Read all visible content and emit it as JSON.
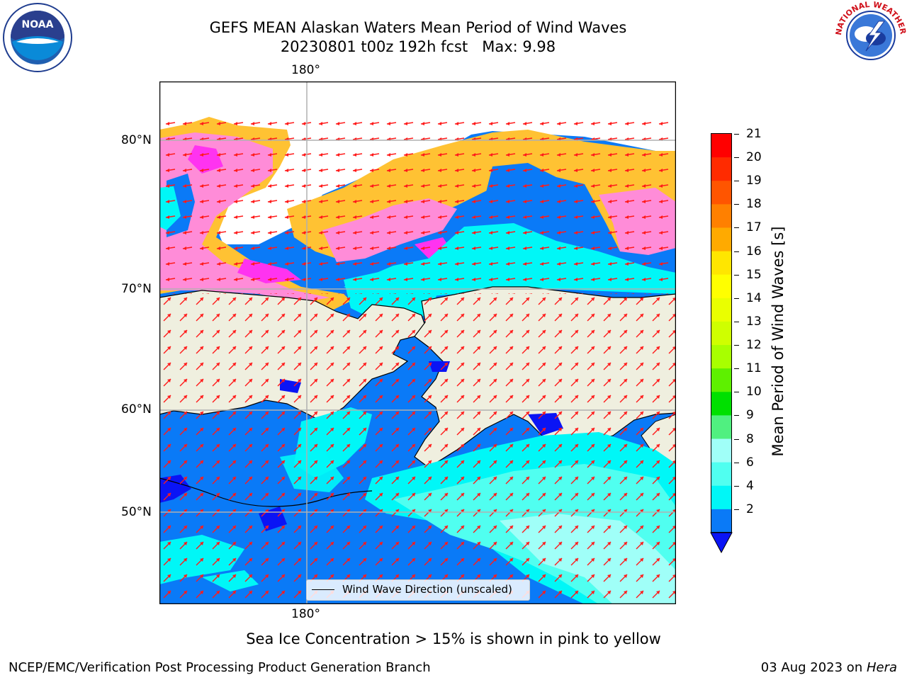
{
  "header": {
    "title_line1": "GEFS MEAN Alaskan Waters Mean Period of Wind Waves",
    "title_line2": "20230801 t00z 192h fcst   Max: 9.98"
  },
  "logos": {
    "left": {
      "icon": "noaa-logo",
      "text": "NOAA"
    },
    "right": {
      "icon": "national-weather-service-logo",
      "text": "NATIONAL WEATHER SERVICE"
    }
  },
  "map": {
    "lon_label_top": "180°",
    "lon_label_bottom": "180°",
    "lat_labels": [
      "80°N",
      "70°N",
      "60°N",
      "50°N"
    ],
    "legend": "Wind Wave Direction (unscaled)",
    "colors": {
      "land": "#efefdf",
      "grid": "#b0b0b0",
      "arrow": "#ff1a1a",
      "ocean_low": "#0a7af7",
      "ocean_mid": "#00f7f7",
      "deep_blue": "#0a14f5"
    }
  },
  "colorbar": {
    "title": "Mean Period of Wind Waves [s]",
    "ticks": [
      "21",
      "20",
      "19",
      "18",
      "17",
      "16",
      "15",
      "14",
      "13",
      "12",
      "11",
      "10",
      "9",
      "8",
      "6",
      "4",
      "2"
    ],
    "colors": [
      "#ff0000",
      "#ff2b00",
      "#ff5500",
      "#ff8000",
      "#ffaa00",
      "#ffe600",
      "#ffff00",
      "#eaff00",
      "#cfff00",
      "#a8ff00",
      "#5ef000",
      "#00e000",
      "#50f080",
      "#a0fff8",
      "#50fff0",
      "#00f7f7",
      "#0a7af7"
    ],
    "extend_color": "#0a14f5"
  },
  "note": "Sea Ice Concentration > 15% is shown in pink to yellow",
  "footer": {
    "left": "NCEP/EMC/Verification Post Processing Product Generation Branch",
    "right_date": "03 Aug 2023 on ",
    "right_machine": "Hera"
  }
}
